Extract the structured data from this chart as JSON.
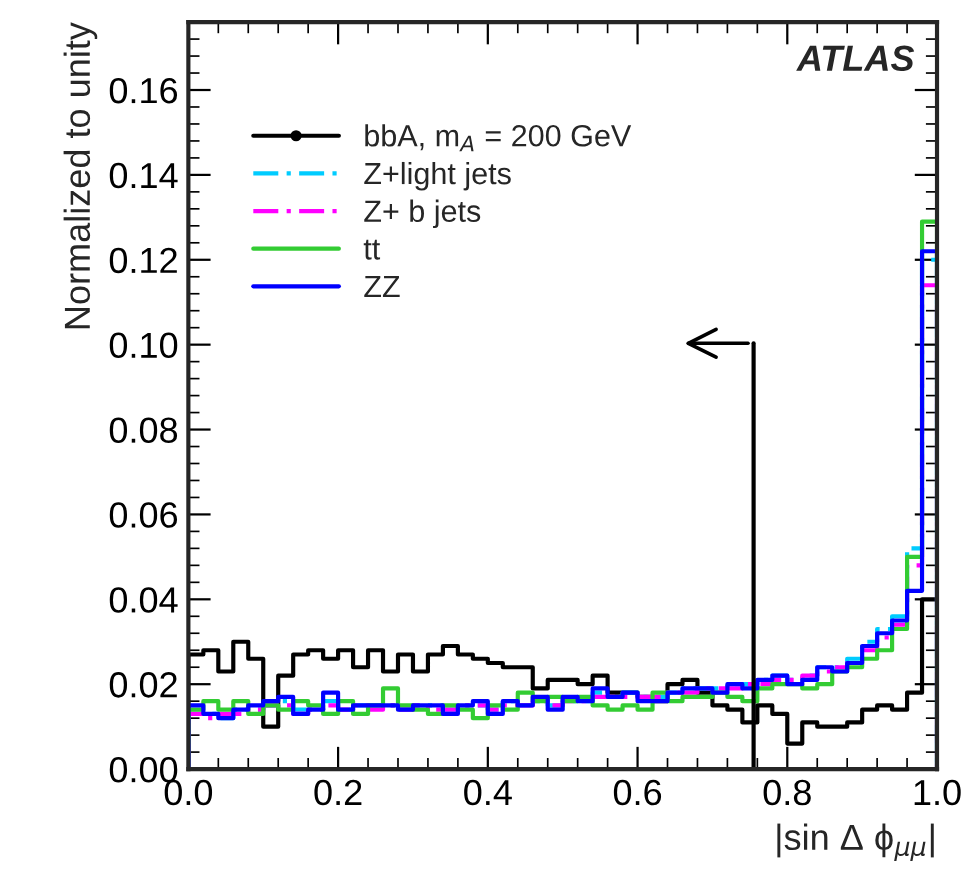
{
  "chart_data": {
    "type": "histogram",
    "xlabel": "|sin Δ ϕ$_{μμ}$|",
    "ylabel": "Normalized to unity",
    "annotations": [
      "ATLAS"
    ],
    "bins": [
      0.0,
      0.02,
      0.04,
      0.06,
      0.08,
      0.1,
      0.12,
      0.14,
      0.16,
      0.18,
      0.2,
      0.22,
      0.24,
      0.26,
      0.28,
      0.3,
      0.32,
      0.34,
      0.36,
      0.38,
      0.4,
      0.42,
      0.44,
      0.46,
      0.48,
      0.5,
      0.52,
      0.54,
      0.56,
      0.58,
      0.6,
      0.62,
      0.64,
      0.66,
      0.68,
      0.7,
      0.72,
      0.74,
      0.76,
      0.78,
      0.8,
      0.82,
      0.84,
      0.86,
      0.88,
      0.9,
      0.92,
      0.94,
      0.96,
      0.98,
      1.0
    ],
    "series": [
      {
        "name": "bbA, m$_{A}$ = 200 GeV",
        "color": "#000000",
        "marker": "circle",
        "line_style": "solid",
        "values": [
          0.027,
          0.028,
          0.023,
          0.03,
          0.026,
          0.01,
          0.022,
          0.027,
          0.028,
          0.026,
          0.028,
          0.024,
          0.028,
          0.023,
          0.027,
          0.023,
          0.027,
          0.029,
          0.027,
          0.026,
          0.025,
          0.024,
          0.024,
          0.019,
          0.021,
          0.021,
          0.02,
          0.022,
          0.018,
          0.018,
          0.017,
          0.016,
          0.02,
          0.021,
          0.018,
          0.015,
          0.014,
          0.011,
          0.015,
          0.013,
          0.006,
          0.011,
          0.01,
          0.01,
          0.011,
          0.014,
          0.015,
          0.014,
          0.018,
          0.04
        ]
      },
      {
        "name": "Z+light jets",
        "color": "#00ccff",
        "line_style": "dashed",
        "values": [
          0.013,
          0.013,
          0.012,
          0.014,
          0.014,
          0.015,
          0.016,
          0.014,
          0.014,
          0.016,
          0.014,
          0.015,
          0.015,
          0.015,
          0.014,
          0.015,
          0.015,
          0.014,
          0.015,
          0.015,
          0.014,
          0.016,
          0.015,
          0.016,
          0.015,
          0.016,
          0.016,
          0.018,
          0.017,
          0.018,
          0.017,
          0.017,
          0.018,
          0.019,
          0.019,
          0.019,
          0.02,
          0.02,
          0.021,
          0.022,
          0.021,
          0.022,
          0.024,
          0.024,
          0.026,
          0.03,
          0.033,
          0.036,
          0.052,
          0.12
        ]
      },
      {
        "name": "Z+ b jets",
        "color": "#ff00ff",
        "line_style": "dashed",
        "values": [
          0.013,
          0.012,
          0.013,
          0.013,
          0.014,
          0.015,
          0.015,
          0.013,
          0.014,
          0.015,
          0.014,
          0.015,
          0.014,
          0.015,
          0.014,
          0.015,
          0.014,
          0.014,
          0.015,
          0.015,
          0.014,
          0.015,
          0.015,
          0.016,
          0.015,
          0.016,
          0.016,
          0.017,
          0.017,
          0.017,
          0.017,
          0.017,
          0.018,
          0.018,
          0.019,
          0.019,
          0.019,
          0.02,
          0.02,
          0.021,
          0.021,
          0.022,
          0.023,
          0.024,
          0.025,
          0.028,
          0.031,
          0.034,
          0.048,
          0.114
        ]
      },
      {
        "name": "tt",
        "color": "#33cc33",
        "line_style": "solid",
        "values": [
          0.014,
          0.016,
          0.014,
          0.016,
          0.013,
          0.015,
          0.014,
          0.016,
          0.015,
          0.013,
          0.016,
          0.013,
          0.015,
          0.019,
          0.015,
          0.014,
          0.013,
          0.015,
          0.014,
          0.012,
          0.015,
          0.014,
          0.018,
          0.016,
          0.017,
          0.016,
          0.017,
          0.015,
          0.014,
          0.015,
          0.014,
          0.018,
          0.016,
          0.017,
          0.017,
          0.018,
          0.017,
          0.016,
          0.019,
          0.02,
          0.02,
          0.019,
          0.02,
          0.023,
          0.024,
          0.026,
          0.028,
          0.033,
          0.05,
          0.129
        ]
      },
      {
        "name": "ZZ",
        "color": "#0000ff",
        "line_style": "solid",
        "values": [
          0.015,
          0.013,
          0.012,
          0.014,
          0.015,
          0.016,
          0.017,
          0.013,
          0.014,
          0.018,
          0.014,
          0.015,
          0.015,
          0.015,
          0.014,
          0.015,
          0.015,
          0.013,
          0.015,
          0.016,
          0.013,
          0.016,
          0.015,
          0.017,
          0.014,
          0.017,
          0.016,
          0.019,
          0.017,
          0.018,
          0.016,
          0.016,
          0.018,
          0.019,
          0.019,
          0.018,
          0.02,
          0.019,
          0.021,
          0.022,
          0.02,
          0.021,
          0.024,
          0.023,
          0.025,
          0.029,
          0.032,
          0.035,
          0.042,
          0.122
        ]
      }
    ],
    "ref_lines": [
      {
        "axis": "x",
        "value": 0.755,
        "color": "#000000"
      }
    ],
    "xlim": [
      0.0,
      1.0
    ],
    "ylim": [
      0.0,
      0.176
    ],
    "xticks": [
      {
        "value": 0.0,
        "label": "0.0"
      },
      0.2,
      0.4,
      0.6,
      0.8,
      {
        "value": 1.0,
        "label": "1.0"
      }
    ],
    "yticks": [
      {
        "value": 0.0,
        "label": "0.00"
      },
      0.02,
      0.04,
      0.06,
      0.08,
      {
        "value": 0.1,
        "label": "0.10"
      },
      {
        "value": 0.12,
        "label": "0.12"
      },
      {
        "value": 0.14,
        "label": "0.14"
      },
      {
        "value": 0.16,
        "label": "0.16"
      }
    ],
    "legend": "top left",
    "grid": false
  }
}
